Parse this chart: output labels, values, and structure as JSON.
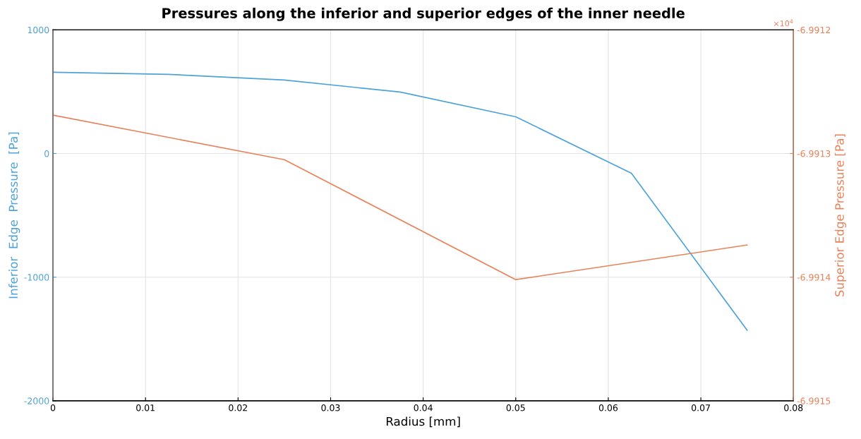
{
  "chart_data": {
    "type": "line",
    "title": "Pressures along the inferior and superior edges of the inner needle",
    "xlabel": "Radius [mm]",
    "ylabel": "Inferior  Edge  Pressure  [Pa]",
    "y2label": "Superior Edge Pressure [Pa]",
    "annotations": [
      "×10$^{4}$"
    ],
    "series": [
      {
        "color": "#4da3d9",
        "x": [
          0,
          0.0125,
          0.025,
          0.0375,
          0.05,
          0.0625,
          0.075
        ],
        "values": [
          657,
          640,
          594,
          497,
          297,
          -160,
          -1429
        ]
      },
      {
        "color": "#e8825a",
        "axis": "y2",
        "x": [
          0,
          0.025,
          0.05,
          0.075
        ],
        "values": [
          -6.991269,
          -6.991305,
          -6.991402,
          -6.991374
        ]
      }
    ],
    "xlim": [
      0,
      0.08
    ],
    "xticks": [
      0,
      0.01,
      0.02,
      0.03,
      0.04,
      0.05,
      0.06,
      0.07,
      0.08
    ],
    "ylim": [
      -2000,
      1000
    ],
    "yticks": [
      -2000,
      -1000,
      0,
      1000
    ],
    "y2lim": [
      -6.9915,
      -6.9912
    ],
    "y2ticks": [
      -6.9915,
      -6.9914,
      -6.9913,
      -6.9912
    ],
    "grid": true,
    "marker": "none",
    "line_style": "solid"
  }
}
